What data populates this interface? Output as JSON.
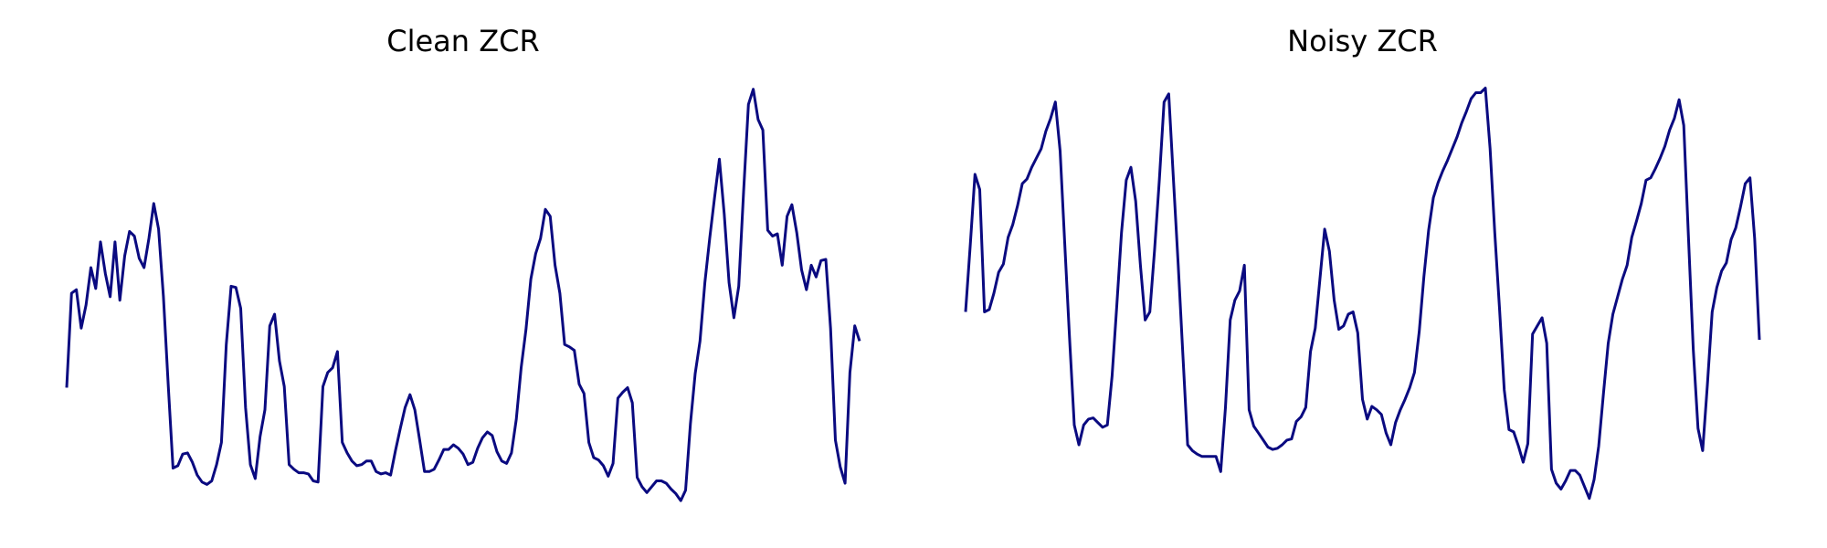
{
  "chart_data": [
    {
      "type": "line",
      "title": "Clean ZCR",
      "color": "#0a0a80",
      "ylim": [
        0,
        380
      ],
      "values": [
        107,
        188,
        191,
        158,
        178,
        210,
        192,
        232,
        205,
        185,
        232,
        182,
        220,
        241,
        237,
        218,
        210,
        235,
        265,
        243,
        185,
        110,
        38,
        40,
        50,
        51,
        43,
        32,
        26,
        24,
        27,
        41,
        60,
        144,
        194,
        193,
        175,
        90,
        41,
        29,
        65,
        88,
        160,
        170,
        130,
        108,
        41,
        37,
        34,
        34,
        33,
        27,
        26,
        108,
        120,
        124,
        138,
        60,
        51,
        44,
        40,
        41,
        44,
        44,
        35,
        33,
        34,
        32,
        53,
        72,
        90,
        101,
        88,
        62,
        35,
        35,
        37,
        45,
        54,
        54,
        58,
        55,
        50,
        41,
        43,
        55,
        64,
        69,
        66,
        52,
        44,
        42,
        51,
        80,
        124,
        157,
        200,
        222,
        235,
        260,
        254,
        212,
        188,
        144,
        142,
        139,
        110,
        102,
        60,
        47,
        45,
        40,
        31,
        42,
        98,
        103,
        107,
        94,
        30,
        22,
        17,
        22,
        27,
        27,
        25,
        20,
        16,
        10,
        19,
        76,
        119,
        147,
        197,
        235,
        270,
        303,
        256,
        197,
        167,
        194,
        275,
        350,
        363,
        337,
        328,
        242,
        237,
        239,
        212,
        254,
        264,
        240,
        208,
        191,
        212,
        202,
        216,
        217,
        158,
        62,
        39,
        25,
        120,
        160,
        147
      ]
    },
    {
      "type": "line",
      "title": "Noisy ZCR",
      "color": "#0a0a80",
      "ylim": [
        0,
        380
      ],
      "values": [
        172,
        230,
        290,
        277,
        172,
        174,
        188,
        206,
        213,
        236,
        247,
        263,
        282,
        286,
        296,
        304,
        312,
        327,
        338,
        352,
        310,
        230,
        150,
        75,
        58,
        75,
        80,
        81,
        77,
        73,
        75,
        117,
        177,
        240,
        285,
        296,
        267,
        212,
        165,
        172,
        225,
        285,
        352,
        359,
        285,
        212,
        135,
        58,
        53,
        50,
        48,
        48,
        48,
        48,
        35,
        90,
        165,
        182,
        190,
        212,
        88,
        74,
        68,
        62,
        56,
        54,
        55,
        58,
        62,
        63,
        78,
        82,
        90,
        138,
        158,
        200,
        243,
        224,
        182,
        157,
        160,
        170,
        172,
        154,
        97,
        80,
        91,
        88,
        84,
        68,
        58,
        77,
        88,
        97,
        107,
        120,
        155,
        202,
        242,
        270,
        283,
        293,
        302,
        312,
        322,
        334,
        344,
        355,
        360,
        360,
        364,
        312,
        240,
        175,
        105,
        71,
        69,
        57,
        43,
        59,
        153,
        160,
        167,
        145,
        37,
        25,
        20,
        27,
        36,
        36,
        32,
        22,
        12,
        28,
        57,
        102,
        145,
        170,
        185,
        200,
        212,
        236,
        250,
        265,
        285,
        287,
        295,
        304,
        314,
        328,
        338,
        354,
        332,
        235,
        140,
        72,
        53,
        110,
        172,
        193,
        207,
        214,
        234,
        244,
        262,
        282,
        287,
        235,
        148
      ]
    }
  ]
}
